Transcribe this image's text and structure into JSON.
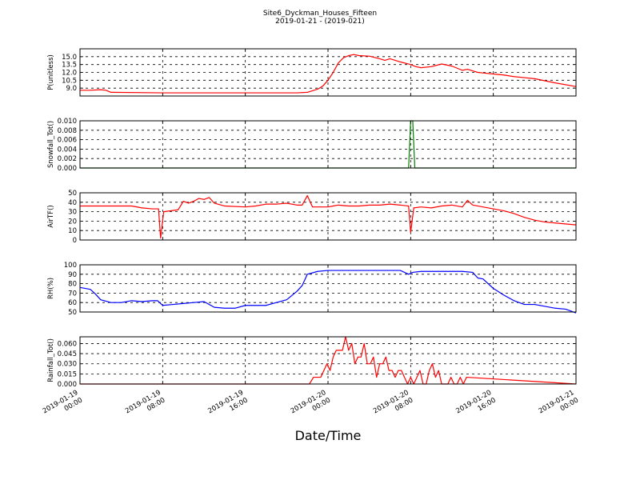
{
  "figure": {
    "title": "Site6_Dyckman_Houses_Fifteen",
    "subtitle": "2019-01-21 - (2019-021)",
    "xlabel": "Date/Time",
    "x_tick_labels": [
      [
        "2019-01-19",
        "00:00"
      ],
      [
        "2019-01-19",
        "08:00"
      ],
      [
        "2019-01-19",
        "16:00"
      ],
      [
        "2019-01-20",
        "00:00"
      ],
      [
        "2019-01-20",
        "08:00"
      ],
      [
        "2019-01-20",
        "16:00"
      ],
      [
        "2019-01-21",
        "00:00"
      ]
    ]
  },
  "chart_data": [
    {
      "type": "line",
      "ylabel": "P(unitless)",
      "ylim": [
        7.5,
        16.5
      ],
      "yticks": [
        9.0,
        10.5,
        12.0,
        13.5,
        15.0
      ],
      "ytick_labels": [
        "9.0",
        "10.5",
        "12.0",
        "13.5",
        "15.0"
      ],
      "grid": true,
      "color": "#ff0000",
      "x_unit": "hours since 2019-01-19 00:00",
      "xlim": [
        0,
        48
      ],
      "x": [
        0,
        1,
        2,
        2.5,
        3,
        8,
        16,
        21,
        22,
        23,
        23.5,
        24,
        24.5,
        25,
        25.5,
        26,
        26.5,
        27,
        28,
        29,
        29.5,
        30,
        31,
        32,
        32.5,
        33,
        34,
        35,
        36,
        37,
        37.5,
        38,
        38.5,
        39,
        40,
        41,
        42,
        43,
        44,
        45,
        46,
        48
      ],
      "values": [
        8.6,
        8.6,
        8.7,
        8.6,
        8.2,
        8.1,
        8.1,
        8.1,
        8.2,
        8.8,
        9.4,
        10.5,
        12.0,
        13.8,
        14.8,
        15.2,
        15.4,
        15.2,
        15.1,
        14.6,
        14.3,
        14.6,
        14.0,
        13.5,
        13.1,
        12.9,
        13.1,
        13.6,
        13.2,
        12.4,
        12.6,
        12.3,
        12.0,
        11.9,
        11.7,
        11.5,
        11.2,
        11.0,
        10.8,
        10.4,
        10.0,
        9.3
      ]
    },
    {
      "type": "line",
      "ylabel": "Snowfall_Tot()",
      "ylim": [
        0,
        0.01
      ],
      "yticks": [
        0.0,
        0.002,
        0.004,
        0.006,
        0.008,
        0.01
      ],
      "ytick_labels": [
        "0.000",
        "0.002",
        "0.004",
        "0.006",
        "0.008",
        "0.010"
      ],
      "grid": true,
      "color": "#007f00",
      "x_unit": "hours since 2019-01-19 00:00",
      "xlim": [
        0,
        48
      ],
      "x": [
        0,
        31.6,
        31.8,
        32.0,
        32.2,
        32.4,
        48
      ],
      "values": [
        0,
        0,
        0,
        0.01,
        0.01,
        0,
        0
      ]
    },
    {
      "type": "line",
      "ylabel": "AirTF()",
      "ylim": [
        0,
        50
      ],
      "yticks": [
        0,
        10,
        20,
        30,
        40,
        50
      ],
      "ytick_labels": [
        "0",
        "10",
        "20",
        "30",
        "40",
        "50"
      ],
      "grid": true,
      "color": "#ff0000",
      "x_unit": "hours since 2019-01-19 00:00",
      "xlim": [
        0,
        48
      ],
      "x": [
        0,
        2,
        4,
        5,
        6,
        7,
        7.6,
        7.8,
        8.1,
        9.5,
        10,
        10.5,
        11,
        11.5,
        12,
        12.5,
        13,
        14,
        16,
        17,
        18,
        19,
        20,
        21,
        21.5,
        22,
        22.5,
        23,
        24,
        24.5,
        25,
        26,
        27,
        28,
        29,
        30,
        31,
        31.8,
        32.0,
        32.3,
        33,
        34,
        35,
        36,
        37,
        37.5,
        38,
        39,
        40,
        41,
        42,
        43,
        44,
        45,
        46,
        48
      ],
      "values": [
        36,
        36,
        36,
        36,
        34,
        33,
        33,
        2,
        30,
        32,
        41,
        39,
        41,
        44,
        43,
        45,
        39,
        36,
        35,
        36,
        38,
        38,
        39,
        37,
        37,
        47,
        35,
        35,
        35,
        36,
        37,
        36,
        36,
        37,
        37,
        38,
        37,
        36,
        8,
        34,
        35,
        34,
        36,
        37,
        35,
        42,
        37,
        35,
        33,
        31,
        28,
        24,
        21,
        19,
        18,
        16
      ]
    },
    {
      "type": "line",
      "ylabel": "RH(%)",
      "ylim": [
        50,
        100
      ],
      "yticks": [
        50,
        60,
        70,
        80,
        90,
        100
      ],
      "ytick_labels": [
        "50",
        "60",
        "70",
        "80",
        "90",
        "100"
      ],
      "grid": true,
      "color": "#0000ff",
      "x_unit": "hours since 2019-01-19 00:00",
      "xlim": [
        0,
        48
      ],
      "x": [
        0,
        1,
        1.5,
        2,
        3,
        4,
        5,
        6,
        7,
        7.5,
        8,
        9,
        10,
        11,
        12,
        13,
        14,
        15,
        16,
        17,
        18,
        19,
        20,
        21,
        21.5,
        22,
        23,
        24,
        25,
        26,
        27,
        28,
        29,
        30,
        31,
        31.8,
        32.2,
        33,
        34,
        35,
        36,
        37,
        38,
        38.5,
        39,
        40,
        41,
        42,
        43,
        44,
        45,
        46,
        47,
        48
      ],
      "values": [
        76,
        74,
        69,
        63,
        60,
        60,
        62,
        61,
        62,
        62,
        57,
        58,
        59,
        60,
        61,
        55,
        54,
        54,
        57,
        57,
        57,
        60,
        63,
        72,
        78,
        90,
        93,
        94,
        94,
        94,
        94,
        94,
        94,
        94,
        94,
        90,
        92,
        93,
        93,
        93,
        93,
        93,
        92,
        86,
        85,
        75,
        68,
        62,
        58,
        58,
        56,
        54,
        53,
        49
      ]
    },
    {
      "type": "line",
      "ylabel": "Rainfall_Tot()",
      "ylim": [
        0,
        0.07
      ],
      "yticks": [
        0.0,
        0.015,
        0.03,
        0.045,
        0.06
      ],
      "ytick_labels": [
        "0.000",
        "0.015",
        "0.030",
        "0.045",
        "0.060"
      ],
      "grid": true,
      "color": "#ff0000",
      "x_unit": "hours since 2019-01-19 00:00",
      "xlim": [
        0,
        48
      ],
      "x": [
        0,
        22.2,
        22.6,
        23.3,
        23.6,
        23.9,
        24.2,
        24.5,
        24.8,
        25.1,
        25.4,
        25.7,
        26.0,
        26.3,
        26.6,
        26.9,
        27.2,
        27.5,
        27.8,
        28.1,
        28.4,
        28.7,
        29.0,
        29.3,
        29.6,
        29.9,
        30.2,
        30.5,
        30.8,
        31.1,
        31.4,
        31.7,
        32.0,
        32.3,
        32.6,
        32.9,
        33.2,
        33.5,
        33.8,
        34.1,
        34.4,
        34.7,
        35.0,
        35.3,
        35.6,
        35.9,
        36.2,
        36.5,
        36.8,
        37.1,
        37.4,
        48
      ],
      "values": [
        0,
        0,
        0.01,
        0.01,
        0.02,
        0.03,
        0.02,
        0.04,
        0.05,
        0.05,
        0.05,
        0.07,
        0.05,
        0.06,
        0.03,
        0.04,
        0.04,
        0.06,
        0.03,
        0.03,
        0.04,
        0.01,
        0.03,
        0.03,
        0.04,
        0.02,
        0.02,
        0.01,
        0.02,
        0.02,
        0.01,
        0.0,
        0.01,
        0.0,
        0.01,
        0.02,
        0.0,
        0.0,
        0.02,
        0.03,
        0.01,
        0.02,
        0.0,
        0.0,
        0.0,
        0.01,
        0.0,
        0.0,
        0.01,
        0.0,
        0.01,
        0.0
      ]
    }
  ]
}
